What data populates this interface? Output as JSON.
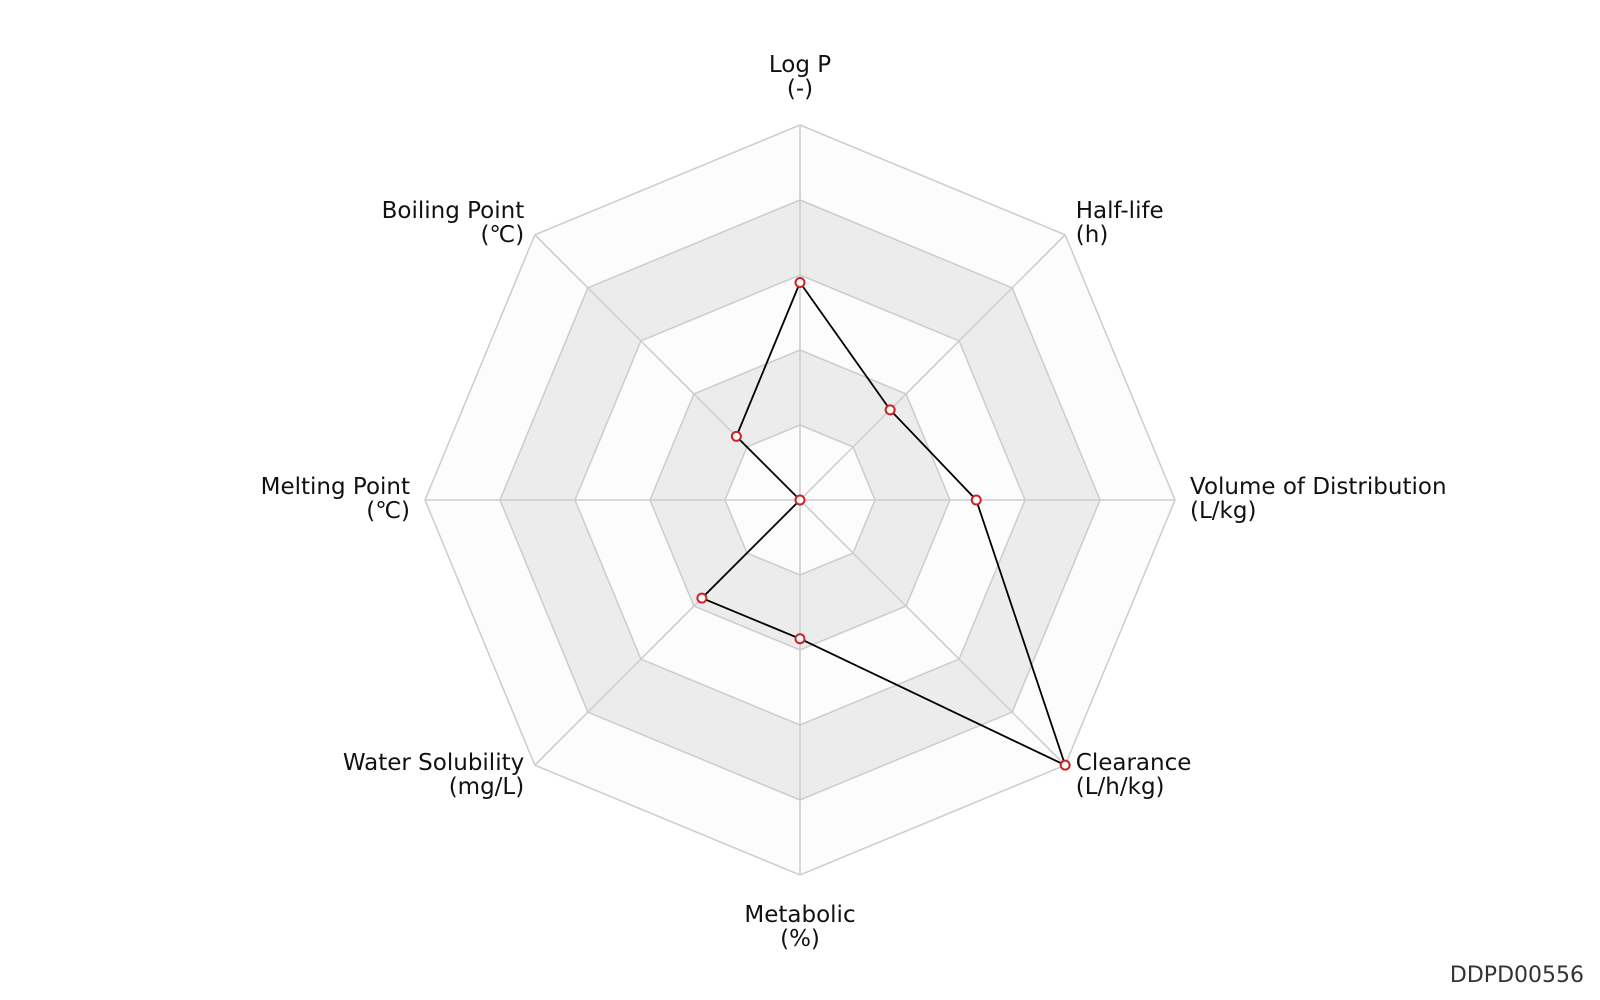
{
  "chart_data": {
    "type": "radar",
    "axes": [
      {
        "name": "Log P",
        "unit": "(-)"
      },
      {
        "name": "Half-life",
        "unit": "(h)"
      },
      {
        "name": "Volume of Distribution",
        "unit": "(L/kg)"
      },
      {
        "name": "Clearance",
        "unit": "(L/h/kg)"
      },
      {
        "name": "Metabolic",
        "unit": "(%)"
      },
      {
        "name": "Water Solubility",
        "unit": "(mg/L)"
      },
      {
        "name": "Melting Point",
        "unit": "(℃)"
      },
      {
        "name": "Boiling Point",
        "unit": "(℃)"
      }
    ],
    "rings": 5,
    "series": [
      {
        "values": [
          0.58,
          0.34,
          0.47,
          1.0,
          0.37,
          0.37,
          0.0,
          0.24
        ]
      }
    ],
    "colors": {
      "band_light": "#fcfcfc",
      "band_dark": "#ececec",
      "grid": "#cccccc",
      "line": "#000000",
      "marker_stroke": "#cc2222",
      "marker_fill": "#ffffff"
    }
  },
  "chart_id": "DDPD00556"
}
